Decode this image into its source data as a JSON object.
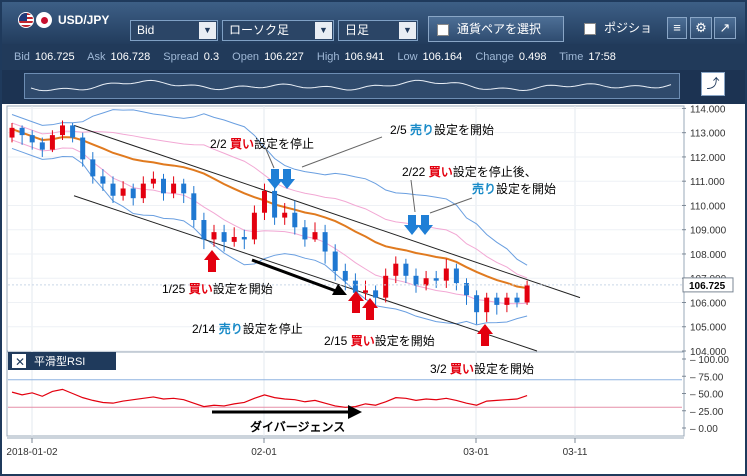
{
  "toolbar": {
    "pair": "USD/JPY",
    "price_type": "Bid",
    "chart_type": "ローソク足",
    "timeframe": "日足",
    "select_pair_label": "通貨ペアを選択",
    "position_label": "ポジション",
    "menu_icon": "hamburger-icon",
    "settings_icon": "gear-icon",
    "popout_icon": "popout-icon"
  },
  "quote": {
    "bid_label": "Bid",
    "bid": "106.725",
    "ask_label": "Ask",
    "ask": "106.728",
    "spread_label": "Spread",
    "spread": "0.3",
    "open_label": "Open",
    "open": "106.227",
    "high_label": "High",
    "high": "106.941",
    "low_label": "Low",
    "low": "106.164",
    "change_label": "Change",
    "change": "0.498",
    "time_label": "Time",
    "time": "17:58"
  },
  "main_chart": {
    "y_ticks": [
      "114.000",
      "113.000",
      "112.000",
      "111.000",
      "110.000",
      "109.000",
      "108.000",
      "107.000",
      "106.000",
      "105.000",
      "104.000"
    ],
    "current_price": "106.725",
    "candles": [
      [
        112.8,
        113.2,
        113.4,
        112.6
      ],
      [
        113.2,
        112.9,
        113.3,
        112.5
      ],
      [
        112.9,
        112.6,
        113.1,
        112.3
      ],
      [
        112.6,
        112.3,
        112.8,
        112.0
      ],
      [
        112.3,
        112.9,
        113.1,
        112.2
      ],
      [
        112.9,
        113.3,
        113.5,
        112.7
      ],
      [
        113.3,
        112.8,
        113.4,
        112.6
      ],
      [
        112.8,
        111.9,
        113.0,
        111.6
      ],
      [
        111.9,
        111.2,
        112.2,
        110.9
      ],
      [
        111.2,
        110.9,
        111.5,
        110.6
      ],
      [
        110.9,
        110.4,
        111.2,
        110.1
      ],
      [
        110.4,
        110.7,
        111.0,
        110.2
      ],
      [
        110.7,
        110.3,
        110.9,
        110.0
      ],
      [
        110.3,
        110.9,
        111.2,
        110.1
      ],
      [
        110.9,
        111.1,
        111.4,
        110.7
      ],
      [
        111.1,
        110.5,
        111.3,
        110.2
      ],
      [
        110.5,
        110.9,
        111.2,
        110.3
      ],
      [
        110.9,
        110.5,
        111.1,
        110.1
      ],
      [
        110.5,
        109.4,
        110.8,
        109.1
      ],
      [
        109.4,
        108.6,
        109.7,
        108.2
      ],
      [
        108.6,
        108.9,
        109.2,
        108.3
      ],
      [
        108.9,
        108.5,
        109.2,
        108.1
      ],
      [
        108.5,
        108.7,
        109.1,
        108.3
      ],
      [
        108.7,
        108.6,
        109.0,
        108.2
      ],
      [
        108.6,
        109.7,
        110.0,
        108.4
      ],
      [
        109.7,
        110.6,
        110.9,
        109.4
      ],
      [
        110.6,
        109.5,
        110.8,
        109.2
      ],
      [
        109.5,
        109.7,
        110.1,
        109.2
      ],
      [
        109.7,
        109.1,
        110.2,
        108.8
      ],
      [
        109.1,
        108.6,
        109.4,
        108.3
      ],
      [
        108.6,
        108.9,
        109.3,
        108.5
      ],
      [
        108.9,
        108.1,
        109.2,
        107.6
      ],
      [
        108.1,
        107.3,
        108.4,
        106.9
      ],
      [
        107.3,
        106.9,
        107.6,
        106.5
      ],
      [
        106.9,
        106.4,
        107.2,
        106.0
      ],
      [
        106.4,
        106.5,
        106.9,
        106.1
      ],
      [
        106.5,
        106.2,
        106.7,
        105.9
      ],
      [
        106.2,
        107.1,
        107.4,
        106.0
      ],
      [
        107.1,
        107.6,
        107.9,
        106.8
      ],
      [
        107.6,
        107.1,
        107.8,
        106.8
      ],
      [
        107.1,
        106.7,
        107.4,
        106.4
      ],
      [
        106.7,
        107.0,
        107.3,
        106.5
      ],
      [
        107.0,
        106.9,
        107.3,
        106.6
      ],
      [
        106.9,
        107.4,
        107.8,
        106.6
      ],
      [
        107.4,
        106.8,
        107.6,
        106.5
      ],
      [
        106.8,
        106.3,
        107.0,
        105.9
      ],
      [
        106.3,
        105.6,
        106.5,
        105.1
      ],
      [
        105.6,
        106.2,
        106.4,
        105.2
      ],
      [
        106.2,
        105.9,
        106.4,
        105.5
      ],
      [
        105.9,
        106.2,
        106.4,
        105.6
      ],
      [
        106.2,
        106.0,
        106.4,
        105.8
      ],
      [
        106.0,
        106.7,
        106.9,
        105.9
      ]
    ],
    "annotations": [
      {
        "date": "2/2",
        "colored": "買い",
        "color": "#e3000f",
        "rest": "設定を停止"
      },
      {
        "date": "2/5",
        "colored": "売り",
        "color": "#1a8bc8",
        "rest": "設定を開始"
      },
      {
        "date": "2/22",
        "colored": "買い",
        "color": "#e3000f",
        "rest": "設定を停止後、"
      },
      {
        "date": "",
        "colored": "売り",
        "color": "#1a8bc8",
        "rest": "設定を開始"
      },
      {
        "date": "1/25",
        "colored": "買い",
        "color": "#e3000f",
        "rest": "設定を開始"
      },
      {
        "date": "2/14",
        "colored": "売り",
        "color": "#1a8bc8",
        "rest": "設定を停止"
      },
      {
        "date": "2/15",
        "colored": "買い",
        "color": "#e3000f",
        "rest": "設定を開始"
      },
      {
        "date": "3/2",
        "colored": "買い",
        "color": "#e3000f",
        "rest": "設定を開始"
      }
    ]
  },
  "rsi_panel": {
    "title": "平滑型RSI",
    "close_icon": "close-icon",
    "y_ticks": [
      "100.00",
      "75.00",
      "50.00",
      "25.00",
      "0.00"
    ],
    "divergence_label": "ダイバージェンス",
    "values": [
      52,
      48,
      51,
      46,
      53,
      56,
      50,
      44,
      40,
      37,
      36,
      39,
      41,
      43,
      45,
      42,
      43,
      41,
      36,
      31,
      33,
      32,
      35,
      37,
      43,
      48,
      44,
      42,
      41,
      38,
      40,
      36,
      32,
      30,
      31,
      35,
      33,
      38,
      44,
      43,
      40,
      42,
      41,
      43,
      40,
      36,
      33,
      39,
      40,
      41,
      42,
      47
    ]
  },
  "x_axis": {
    "labels": [
      "2018-01-02",
      "02-01",
      "03-01",
      "03-11"
    ]
  },
  "colors": {
    "bull": "#e3000f",
    "bear": "#1f78d1",
    "ma": "#e07a1f",
    "band_outer": "#6a9fe0",
    "band_inner": "#f2a8d4",
    "rsi": "#e3000f",
    "buy_arrow": "#e3000f",
    "sell_arrow": "#1f7fd6"
  }
}
